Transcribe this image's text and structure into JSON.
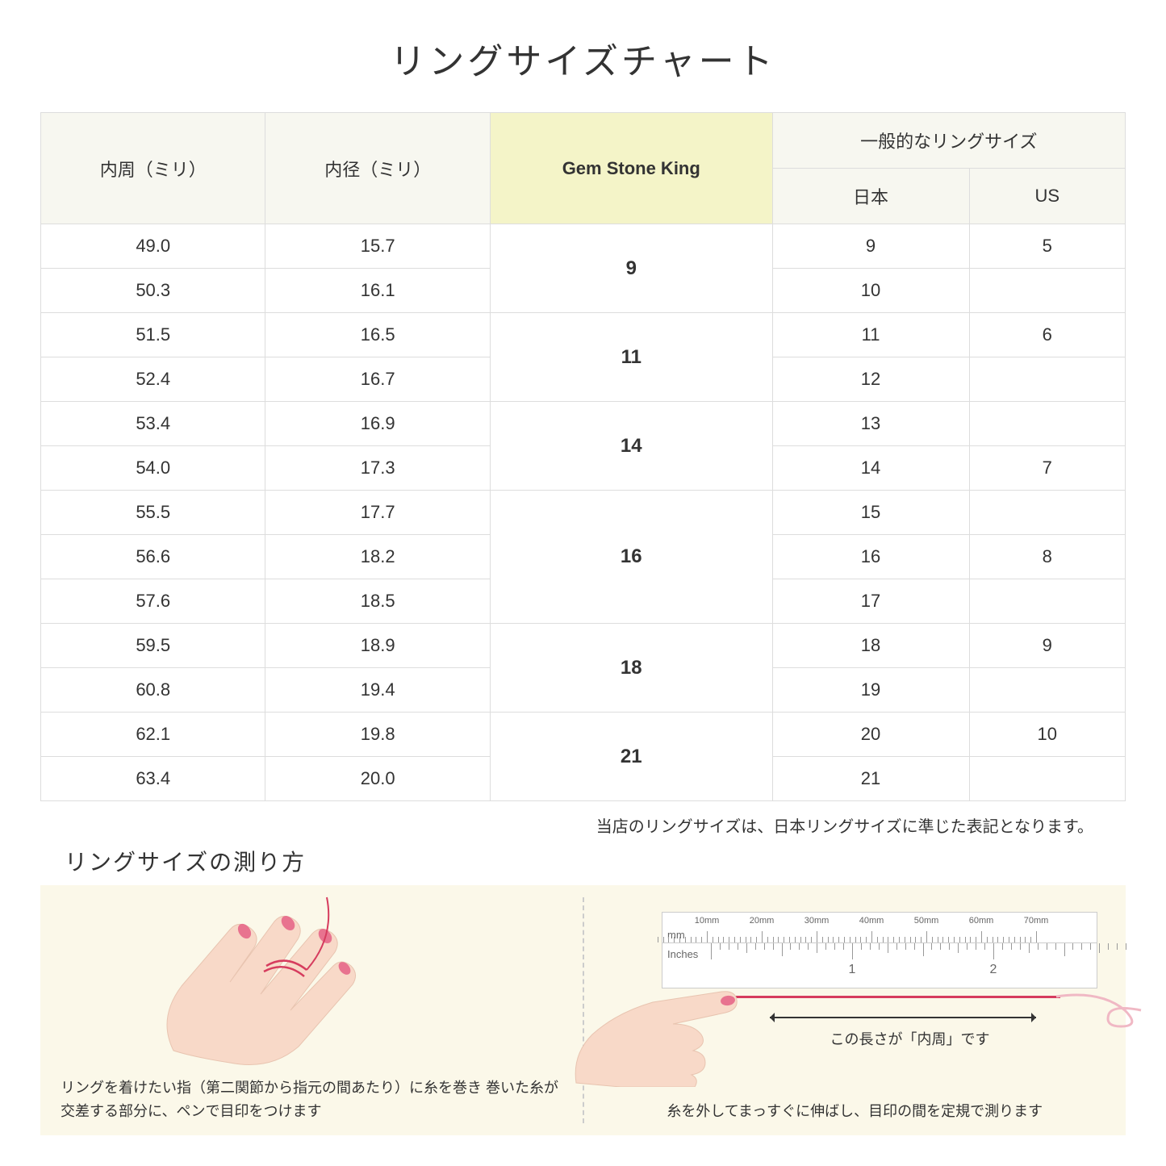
{
  "title": "リングサイズチャート",
  "headers": {
    "circumference": "内周（ミリ）",
    "diameter": "内径（ミリ）",
    "gsk": "Gem Stone King",
    "general": "一般的なリングサイズ",
    "jp": "日本",
    "us": "US"
  },
  "groups": [
    {
      "gsk": "9",
      "rows": [
        {
          "c": "49.0",
          "d": "15.7",
          "jp": "9",
          "us": "5"
        },
        {
          "c": "50.3",
          "d": "16.1",
          "jp": "10",
          "us": ""
        }
      ]
    },
    {
      "gsk": "11",
      "rows": [
        {
          "c": "51.5",
          "d": "16.5",
          "jp": "11",
          "us": "6"
        },
        {
          "c": "52.4",
          "d": "16.7",
          "jp": "12",
          "us": ""
        }
      ]
    },
    {
      "gsk": "14",
      "rows": [
        {
          "c": "53.4",
          "d": "16.9",
          "jp": "13",
          "us": ""
        },
        {
          "c": "54.0",
          "d": "17.3",
          "jp": "14",
          "us": "7"
        }
      ]
    },
    {
      "gsk": "16",
      "rows": [
        {
          "c": "55.5",
          "d": "17.7",
          "jp": "15",
          "us": ""
        },
        {
          "c": "56.6",
          "d": "18.2",
          "jp": "16",
          "us": "8"
        },
        {
          "c": "57.6",
          "d": "18.5",
          "jp": "17",
          "us": ""
        }
      ]
    },
    {
      "gsk": "18",
      "rows": [
        {
          "c": "59.5",
          "d": "18.9",
          "jp": "18",
          "us": "9"
        },
        {
          "c": "60.8",
          "d": "19.4",
          "jp": "19",
          "us": ""
        }
      ]
    },
    {
      "gsk": "21",
      "rows": [
        {
          "c": "62.1",
          "d": "19.8",
          "jp": "20",
          "us": "10"
        },
        {
          "c": "63.4",
          "d": "20.0",
          "jp": "21",
          "us": ""
        }
      ]
    }
  ],
  "note": "当店のリングサイズは、日本リングサイズに準じた表記となります。",
  "howto": {
    "title": "リングサイズの測り方",
    "left_caption": "リングを着けたい指（第二関節から指元の間あたり）に糸を巻き\n巻いた糸が交差する部分に、ペンで目印をつけます",
    "right_caption": "糸を外してまっすぐに伸ばし、目印の間を定規で測ります",
    "arrow_label": "この長さが「内周」です",
    "ruler": {
      "mm_label": "mm",
      "in_label": "Inches",
      "mm_ticks": [
        "10mm",
        "20mm",
        "30mm",
        "40mm",
        "50mm",
        "60mm",
        "70mm"
      ],
      "in_majors": [
        "1",
        "2"
      ]
    }
  },
  "colors": {
    "header_bg": "#f7f7f0",
    "highlight_bg": "#f4f4c8",
    "panel_bg": "#fbf8e9",
    "thread": "#d63c5e",
    "skin": "#f8d9c8",
    "nail": "#e8738f"
  }
}
